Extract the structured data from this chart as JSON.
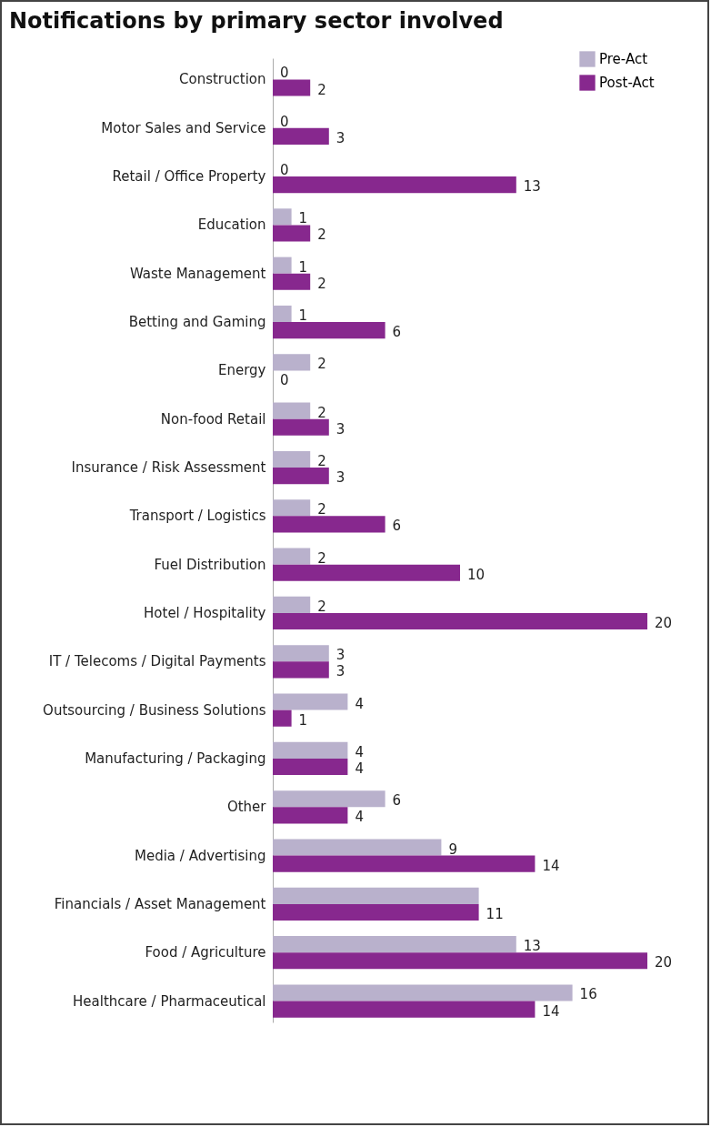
{
  "chart_data": {
    "type": "bar",
    "orientation": "horizontal",
    "title": "Notifications by primary sector involved",
    "legend": "top right",
    "tick_labels": "y",
    "categories": [
      "Construction",
      "Motor Sales and Service",
      "Retail / Office Property",
      "Education",
      "Waste Management",
      "Betting and Gaming",
      "Energy",
      "Non-food Retail",
      "Insurance / Risk Assessment",
      "Transport / Logistics",
      "Fuel Distribution",
      "Hotel / Hospitality",
      "IT / Telecoms / Digital Payments",
      "Outsourcing / Business Solutions",
      "Manufacturing / Packaging",
      "Other",
      "Media / Advertising",
      "Financials / Asset Management",
      "Food / Agriculture",
      "Healthcare / Pharmaceutical"
    ],
    "series": [
      {
        "name": "Pre-Act",
        "color": "#b9b1cc",
        "values": [
          0,
          0,
          0,
          1,
          1,
          1,
          2,
          2,
          2,
          2,
          2,
          2,
          3,
          4,
          4,
          6,
          9,
          11,
          13,
          16
        ],
        "value_labels": [
          "0",
          "0",
          "0",
          "1",
          "1",
          "1",
          "2",
          "2",
          "2",
          "2",
          "2",
          "2",
          "3",
          "4",
          "4",
          "6",
          "9",
          null,
          "13",
          "16"
        ]
      },
      {
        "name": "Post-Act",
        "color": "#87288e",
        "values": [
          2,
          3,
          13,
          2,
          2,
          6,
          0,
          3,
          3,
          6,
          10,
          20,
          3,
          1,
          4,
          4,
          14,
          11,
          20,
          14
        ],
        "value_labels": [
          "2",
          "3",
          "13",
          "2",
          "2",
          "6",
          "0",
          "3",
          "3",
          "6",
          "10",
          "20",
          "3",
          "1",
          "4",
          "4",
          "14",
          "11",
          "20",
          "14"
        ]
      }
    ]
  }
}
